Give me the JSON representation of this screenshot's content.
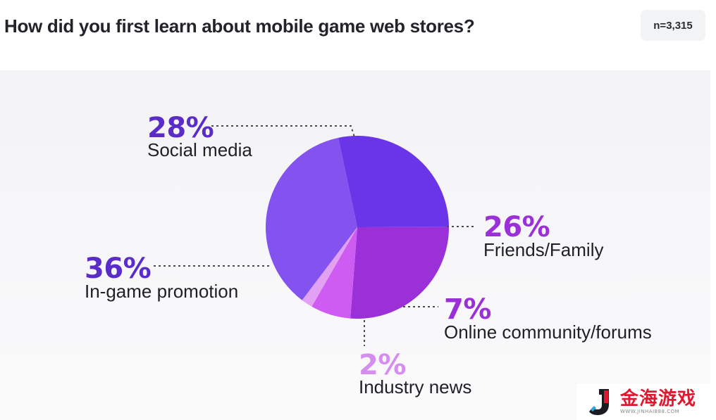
{
  "title": "How did you first learn about mobile game web stores?",
  "sample_badge": "n=3,315",
  "colors": {
    "social_media": "#6a35e8",
    "friends_family": "#9b2fd8",
    "online_community": "#cf5cf2",
    "industry_news": "#e3a1f3",
    "in_game_promotion": "#8452ef",
    "pct_dark_purple": "#5a2dc9",
    "pct_magenta": "#9b2fd8",
    "pct_light": "#d58ef0"
  },
  "chart_data": {
    "type": "pie",
    "title": "How did you first learn about mobile game web stores?",
    "slices": [
      {
        "label": "Social media",
        "value": 28,
        "value_label": "28%"
      },
      {
        "label": "Friends/Family",
        "value": 26,
        "value_label": "26%"
      },
      {
        "label": "Online community/forums",
        "value": 7,
        "value_label": "7%"
      },
      {
        "label": "Industry news",
        "value": 2,
        "value_label": "2%"
      },
      {
        "label": "In-game promotion",
        "value": 36,
        "value_label": "36%"
      }
    ],
    "legend": "none"
  },
  "watermark": {
    "text": "金海游戏",
    "url": "WWW.JINHAI888.COM"
  }
}
